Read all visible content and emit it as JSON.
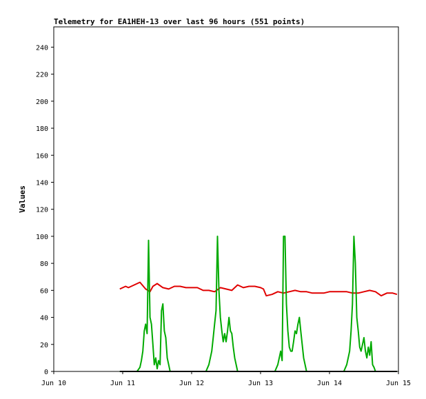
{
  "chart_data": {
    "type": "line",
    "title": "Telemetry for EA1HEH-13 over last 96 hours (551 points)",
    "xlabel": "",
    "ylabel": "Values",
    "ylim": [
      0,
      255
    ],
    "yticks": [
      0,
      20,
      40,
      60,
      80,
      100,
      120,
      140,
      160,
      180,
      200,
      220,
      240
    ],
    "xlim": [
      "Jun 10",
      "Jun 15"
    ],
    "xticks": [
      "Jun 10",
      "Jun 11",
      "Jun 12",
      "Jun 13",
      "Jun 14",
      "Jun 15"
    ],
    "grid": false,
    "series": [
      {
        "color": "#e00000",
        "x": [
          "2025-06-10T23:00",
          "2025-06-11T01:00",
          "2025-06-11T02:00",
          "2025-06-11T04:00",
          "2025-06-11T06:00",
          "2025-06-11T08:00",
          "2025-06-11T09:30",
          "2025-06-11T10:30",
          "2025-06-11T12:00",
          "2025-06-11T14:00",
          "2025-06-11T16:00",
          "2025-06-11T18:00",
          "2025-06-11T20:00",
          "2025-06-11T22:00",
          "2025-06-12T00:00",
          "2025-06-12T02:00",
          "2025-06-12T04:00",
          "2025-06-12T06:00",
          "2025-06-12T08:00",
          "2025-06-12T10:00",
          "2025-06-12T12:00",
          "2025-06-12T14:00",
          "2025-06-12T16:00",
          "2025-06-12T18:00",
          "2025-06-12T20:00",
          "2025-06-12T22:00",
          "2025-06-13T00:00",
          "2025-06-13T01:00",
          "2025-06-13T02:00",
          "2025-06-13T04:00",
          "2025-06-13T06:00",
          "2025-06-13T08:00",
          "2025-06-13T10:00",
          "2025-06-13T12:00",
          "2025-06-13T14:00",
          "2025-06-13T16:00",
          "2025-06-13T18:00",
          "2025-06-13T20:00",
          "2025-06-13T22:00",
          "2025-06-14T00:00",
          "2025-06-14T02:00",
          "2025-06-14T04:00",
          "2025-06-14T06:00",
          "2025-06-14T08:00",
          "2025-06-14T10:00",
          "2025-06-14T12:00",
          "2025-06-14T14:00",
          "2025-06-14T16:00",
          "2025-06-14T18:00",
          "2025-06-14T20:00",
          "2025-06-14T22:00",
          "2025-06-14T23:30"
        ],
        "y": [
          61,
          63,
          62,
          64,
          66,
          61,
          59,
          63,
          65,
          62,
          61,
          63,
          63,
          62,
          62,
          62,
          60,
          60,
          59,
          62,
          61,
          60,
          64,
          62,
          63,
          63,
          62,
          61,
          56,
          57,
          59,
          58,
          59,
          60,
          59,
          59,
          58,
          58,
          58,
          59,
          59,
          59,
          59,
          58,
          58,
          59,
          60,
          59,
          56,
          58,
          58,
          57
        ]
      },
      {
        "color": "#00aa00",
        "x": [
          "2025-06-10T23:00",
          "2025-06-11T05:00",
          "2025-06-11T06:00",
          "2025-06-11T06:30",
          "2025-06-11T07:00",
          "2025-06-11T07:30",
          "2025-06-11T08:00",
          "2025-06-11T08:30",
          "2025-06-11T09:00",
          "2025-06-11T09:30",
          "2025-06-11T10:00",
          "2025-06-11T10:30",
          "2025-06-11T11:00",
          "2025-06-11T11:30",
          "2025-06-11T12:00",
          "2025-06-11T12:30",
          "2025-06-11T13:00",
          "2025-06-11T13:30",
          "2025-06-11T14:00",
          "2025-06-11T14:30",
          "2025-06-11T15:00",
          "2025-06-11T15:30",
          "2025-06-11T16:00",
          "2025-06-11T16:30",
          "2025-06-11T17:00",
          "2025-06-11T18:00",
          "2025-06-12T05:00",
          "2025-06-12T06:00",
          "2025-06-12T06:30",
          "2025-06-12T07:00",
          "2025-06-12T07:30",
          "2025-06-12T08:00",
          "2025-06-12T08:30",
          "2025-06-12T09:00",
          "2025-06-12T09:30",
          "2025-06-12T10:00",
          "2025-06-12T10:30",
          "2025-06-12T11:00",
          "2025-06-12T11:30",
          "2025-06-12T12:00",
          "2025-06-12T12:30",
          "2025-06-12T13:00",
          "2025-06-12T13:30",
          "2025-06-12T14:00",
          "2025-06-12T14:30",
          "2025-06-12T15:00",
          "2025-06-12T15:30",
          "2025-06-12T16:00",
          "2025-06-12T17:00",
          "2025-06-12T18:00",
          "2025-06-13T05:00",
          "2025-06-13T06:00",
          "2025-06-13T06:30",
          "2025-06-13T07:00",
          "2025-06-13T07:30",
          "2025-06-13T08:00",
          "2025-06-13T08:30",
          "2025-06-13T09:00",
          "2025-06-13T09:30",
          "2025-06-13T10:00",
          "2025-06-13T10:30",
          "2025-06-13T11:00",
          "2025-06-13T11:30",
          "2025-06-13T12:00",
          "2025-06-13T12:30",
          "2025-06-13T13:00",
          "2025-06-13T13:30",
          "2025-06-13T14:00",
          "2025-06-13T14:30",
          "2025-06-13T15:00",
          "2025-06-13T15:30",
          "2025-06-13T16:00",
          "2025-06-13T16:30",
          "2025-06-13T17:00",
          "2025-06-13T18:00",
          "2025-06-14T05:00",
          "2025-06-14T06:00",
          "2025-06-14T06:30",
          "2025-06-14T07:00",
          "2025-06-14T07:30",
          "2025-06-14T08:00",
          "2025-06-14T08:30",
          "2025-06-14T09:00",
          "2025-06-14T09:30",
          "2025-06-14T10:00",
          "2025-06-14T10:30",
          "2025-06-14T11:00",
          "2025-06-14T11:30",
          "2025-06-14T12:00",
          "2025-06-14T12:30",
          "2025-06-14T13:00",
          "2025-06-14T13:30",
          "2025-06-14T14:00",
          "2025-06-14T14:30",
          "2025-06-14T15:00",
          "2025-06-14T15:30",
          "2025-06-14T16:00",
          "2025-06-14T17:00",
          "2025-06-14T18:00",
          "2025-06-14T23:30"
        ],
        "y": [
          0,
          0,
          3,
          8,
          15,
          30,
          35,
          28,
          97,
          40,
          35,
          20,
          5,
          10,
          2,
          8,
          5,
          45,
          50,
          30,
          25,
          10,
          5,
          0,
          0,
          0,
          0,
          5,
          10,
          15,
          25,
          35,
          45,
          100,
          60,
          40,
          30,
          22,
          28,
          22,
          30,
          40,
          30,
          28,
          18,
          10,
          5,
          0,
          0,
          0,
          0,
          5,
          10,
          15,
          8,
          100,
          100,
          50,
          30,
          18,
          15,
          15,
          22,
          30,
          28,
          35,
          40,
          30,
          20,
          10,
          5,
          0,
          0,
          0,
          0,
          0,
          5,
          10,
          15,
          30,
          50,
          100,
          80,
          40,
          30,
          18,
          15,
          20,
          25,
          15,
          10,
          18,
          12,
          22,
          5,
          3,
          0,
          0,
          0,
          0
        ]
      },
      {
        "color": "#000000",
        "x": [
          "2025-06-10T23:00",
          "2025-06-14T23:30"
        ],
        "y": [
          0,
          0
        ]
      }
    ]
  }
}
